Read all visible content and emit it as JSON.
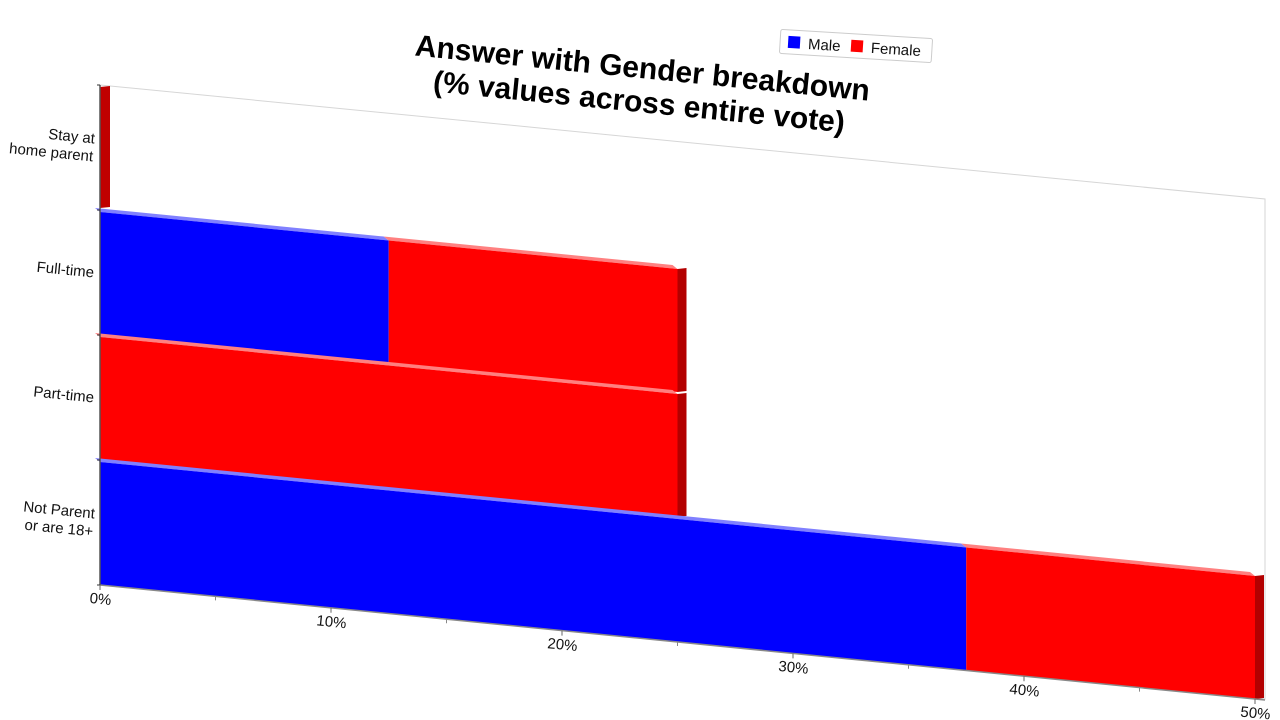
{
  "chart_data": {
    "type": "bar",
    "orientation": "horizontal",
    "stacked": true,
    "title": [
      "Answer with Gender breakdown",
      "(% values across entire vote)"
    ],
    "xlabel": "",
    "ylabel": "",
    "categories": [
      "Stay at home parent",
      "Full-time",
      "Part-time",
      "Not Parent or are 18+"
    ],
    "category_label_lines": [
      [
        "Stay at",
        "home parent"
      ],
      [
        "Full-time"
      ],
      [
        "Part-time"
      ],
      [
        "Not Parent",
        "or are 18+"
      ]
    ],
    "series": [
      {
        "name": "Male",
        "color": "#0000ff",
        "values": [
          0,
          12.5,
          0,
          37.5
        ]
      },
      {
        "name": "Female",
        "color": "#ff0000",
        "values": [
          0,
          12.5,
          25,
          12.5
        ]
      }
    ],
    "xlim": [
      0,
      50
    ],
    "x_ticks": [
      0,
      10,
      20,
      30,
      40,
      50
    ],
    "x_tick_labels": [
      "0%",
      "10%",
      "20%",
      "30%",
      "40%",
      "50%"
    ],
    "legend": {
      "position": "top",
      "entries": [
        "Male",
        "Female"
      ]
    },
    "grid": false,
    "style": "3d"
  }
}
